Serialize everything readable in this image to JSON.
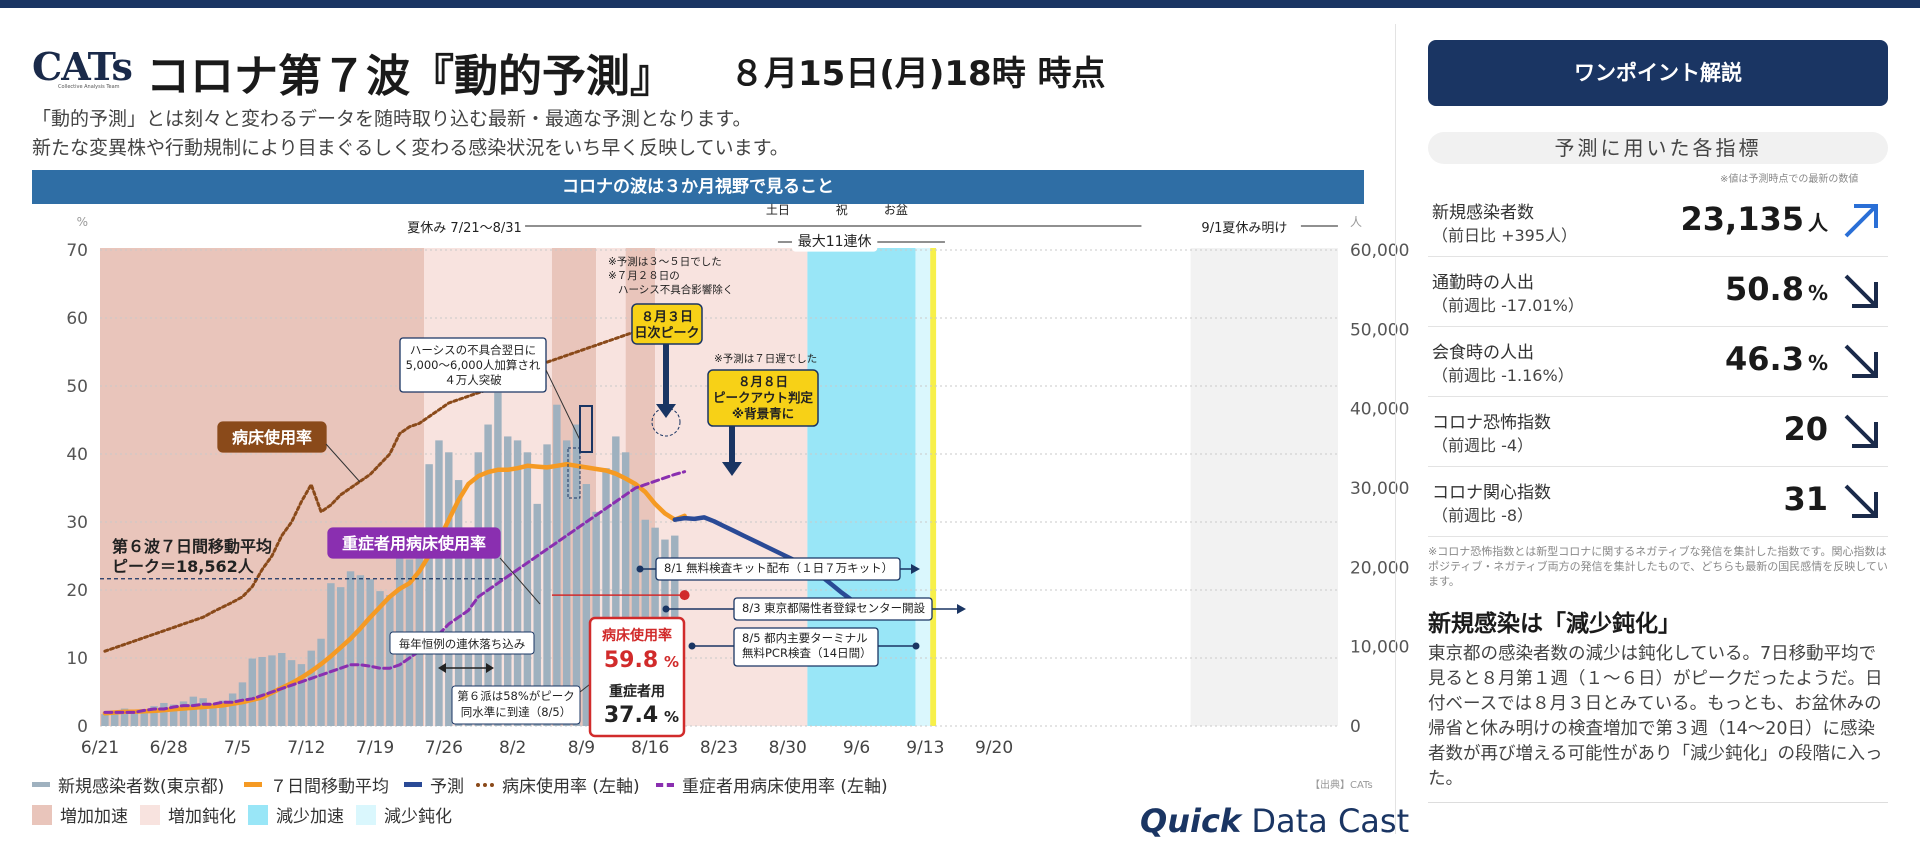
{
  "header": {
    "logo": "CATs",
    "logo_sub": "Collective Analysis Team",
    "title": "コロナ第７波『動的予測』",
    "asof": "８月15日(月)18時 時点",
    "desc1": "「動的予測」とは刻々と変わるデータを随時取り込む最新・最適な予測となります。",
    "desc2": "新たな変異株や行動規制により目まぐるしく変わる感染状況をいち早く反映しています。",
    "banner": "コロナの波は３か月視野で見ること"
  },
  "colors": {
    "bars": "#9fb1bf",
    "ma7": "#f59a23",
    "forecast": "#2a4a96",
    "bed": "#8a4a1a",
    "severe": "#8a2fb0",
    "incFast": "#e9c5bb",
    "incSlow": "#f8e3df",
    "decFast": "#99e6f7",
    "decSlow": "#daf7fd",
    "navy": "#1a3563"
  },
  "chart_data": {
    "type": "bar+line",
    "x_tick_labels": [
      "6/21",
      "6/28",
      "7/5",
      "7/12",
      "7/19",
      "7/26",
      "8/2",
      "8/9",
      "8/16",
      "8/23",
      "8/30",
      "9/6",
      "9/13",
      "9/20"
    ],
    "y_left_unit": "%",
    "y_left_ticks": [
      "0",
      "10",
      "20",
      "30",
      "40",
      "50",
      "60",
      "70"
    ],
    "ylim_left": [
      0,
      70
    ],
    "y_right_unit": "人",
    "y_right_ticks": [
      "0",
      "10,000",
      "20,000",
      "30,000",
      "40,000",
      "50,000",
      "60,000"
    ],
    "ylim_right": [
      0,
      60000
    ],
    "grid": "horizontal dotted",
    "day_start": "2022-06-21",
    "series": [
      {
        "name": "新規感染者数(東京都)",
        "type": "bar",
        "axis": "right",
        "start_day": 0,
        "values": [
          1500,
          1800,
          2200,
          1700,
          1600,
          2500,
          2900,
          2700,
          3100,
          3700,
          3500,
          2800,
          3200,
          4100,
          5500,
          8500,
          8700,
          8900,
          9200,
          8300,
          7800,
          9500,
          11000,
          18000,
          17500,
          19500,
          19000,
          18500,
          17000,
          16500,
          21500,
          21000,
          24000,
          33000,
          36000,
          34500,
          31000,
          25000,
          34500,
          38000,
          42000,
          36500,
          36000,
          34500,
          28000,
          35500,
          40500,
          36000,
          38000,
          30500,
          27000,
          32500,
          36500,
          34500,
          30500,
          26000,
          25000,
          23500,
          24000
        ]
      },
      {
        "name": "７日間移動平均",
        "type": "line",
        "axis": "right",
        "start_day": 0,
        "values": [
          1600,
          1700,
          1800,
          1800,
          1850,
          1900,
          2000,
          2100,
          2200,
          2300,
          2400,
          2500,
          2600,
          2800,
          3000,
          3300,
          3600,
          4200,
          4800,
          5400,
          6100,
          6900,
          7800,
          8800,
          9900,
          11000,
          12300,
          13700,
          15000,
          16300,
          17300,
          18000,
          19500,
          21500,
          23500,
          26000,
          28500,
          30500,
          31500,
          32000,
          32300,
          32300,
          32500,
          32800,
          32700,
          32600,
          32800,
          33000,
          32800,
          32600,
          32400,
          32200,
          31800,
          31200,
          30500,
          29500,
          28000,
          26800,
          26000,
          26500
        ]
      },
      {
        "name": "予測",
        "type": "line",
        "axis": "right",
        "start_day": 58,
        "values": [
          26000,
          26200,
          26100,
          26300,
          25800,
          25200,
          24600,
          24000,
          23400,
          22800,
          22200,
          21600,
          21000,
          20300,
          19600,
          18800,
          17800,
          16800,
          15900,
          15100,
          14400,
          13800
        ]
      },
      {
        "name": "病床使用率 (左軸)",
        "type": "line",
        "axis": "left",
        "start_day": 0,
        "values": [
          11,
          11.5,
          12,
          12.5,
          13,
          13.5,
          14,
          14.5,
          15,
          15.5,
          16,
          16.8,
          17.5,
          18.2,
          19,
          20.5,
          23,
          25,
          28,
          30,
          33,
          35.5,
          31.5,
          32.5,
          34,
          35,
          36,
          37,
          38.5,
          40,
          43,
          44,
          44.5,
          45.5,
          46.5,
          47.5,
          48,
          48.5,
          49,
          49.5,
          50,
          51,
          52,
          52.5,
          53,
          53.5,
          54,
          54.5,
          55,
          55.5,
          56,
          56.5,
          57,
          57.5,
          58,
          58.5,
          59,
          59.2,
          59.5,
          59.8
        ]
      },
      {
        "name": "重症者用病床使用率 (左軸)",
        "type": "line",
        "axis": "left",
        "start_day": 0,
        "values": [
          2,
          2,
          2,
          2,
          2.3,
          2.5,
          2.5,
          2.8,
          3,
          3,
          3.2,
          3.2,
          3.5,
          3.5,
          3.8,
          4,
          4.5,
          5,
          5.5,
          6,
          6.5,
          7,
          7.5,
          8,
          8.5,
          9,
          9,
          8.8,
          8.5,
          8.5,
          9,
          10,
          11,
          12,
          13.5,
          15,
          16,
          17,
          19,
          20,
          21,
          22,
          23,
          24,
          25,
          26,
          27,
          28,
          29,
          30,
          31,
          32,
          33,
          34,
          35,
          35.5,
          36,
          36.5,
          37,
          37.4
        ]
      }
    ],
    "phases": [
      {
        "start": 0,
        "end": 33,
        "type": "incFast"
      },
      {
        "start": 33,
        "end": 46,
        "type": "incSlow"
      },
      {
        "start": 46,
        "end": 50.5,
        "type": "incFast"
      },
      {
        "start": 50.5,
        "end": 53.5,
        "type": "incSlow"
      },
      {
        "start": 53.5,
        "end": 56.5,
        "type": "incFast"
      },
      {
        "start": 56.5,
        "end": 72,
        "type": "incSlow"
      },
      {
        "start": 72,
        "end": 83,
        "type": "decFast"
      },
      {
        "start": 83,
        "end": 84.5,
        "type": "decSlow"
      },
      {
        "start": 111,
        "end": 126,
        "type": "grey"
      }
    ],
    "annotations": {
      "summer": "夏休み 7/21〜8/31",
      "summer_end": "9/1夏休み明け",
      "sat": "土日",
      "holiday": "祝",
      "obon": "お盆",
      "longest": "最大11連休",
      "note_her": [
        "※予測は３〜５日でした",
        "※７月２８日の",
        "ハーシス不具合影響除く"
      ],
      "peak_label": [
        "８月３日",
        "日次ピーク"
      ],
      "note_7days": "※予測は７日遅でした",
      "peakout": [
        "８月８日",
        "ピークアウト判定",
        "※背景青に"
      ],
      "hersys": [
        "ハーシスの不具合翌日に",
        "5,000〜6,000人加算され",
        "４万人突破"
      ],
      "bed_label": "病床使用率",
      "severe_label": "重症者用病床使用率",
      "wave6": [
        "第６波７日間移動平均",
        "ピーク＝18,562人"
      ],
      "holiday_drop": "毎年恒例の連休落ち込み",
      "w6_58": [
        "第６派は58%がピーク",
        "同水準に到達（8/5）"
      ],
      "bed_now_label": "病床使用率",
      "bed_now_value": "59.8",
      "pct": "%",
      "severe_now_label": "重症者用",
      "severe_now_value": "37.4",
      "ev1": "8/1 無料検査キット配布（１日７万キット）",
      "ev2": "8/3 東京都陽性者登録センター開設",
      "ev3": [
        "8/5 都内主要ターミナル",
        "無料PCR検査（14日間）"
      ]
    }
  },
  "legend": {
    "row1": [
      "新規感染者数(東京都)",
      "７日間移動平均",
      "予測",
      "病床使用率 (左軸)",
      "重症者用病床使用率 (左軸)"
    ],
    "row2": [
      "増加加速",
      "増加鈍化",
      "減少加速",
      "減少鈍化"
    ],
    "source": "【出典】CATs",
    "brand_quick": "Quick",
    "brand_rest": " Data Cast"
  },
  "right_panel": {
    "button": "ワンポイント解説",
    "pill": "予測に用いた各指標",
    "note": "※値は予測時点での最新の数値",
    "indicators": [
      {
        "name": "新規感染者数",
        "change": "（前日比 +395人）",
        "value": "23,135",
        "unit": "人",
        "arrow": "up-right"
      },
      {
        "name": "通勤時の人出",
        "change": "（前週比 -17.01%）",
        "value": "50.8",
        "unit": "%",
        "arrow": "down-right"
      },
      {
        "name": "会食時の人出",
        "change": "（前週比 -1.16%）",
        "value": "46.3",
        "unit": "%",
        "arrow": "down-right"
      },
      {
        "name": "コロナ恐怖指数",
        "change": "（前週比 -4）",
        "value": "20",
        "unit": "",
        "arrow": "down-right"
      },
      {
        "name": "コロナ関心指数",
        "change": "（前週比 -8）",
        "value": "31",
        "unit": "",
        "arrow": "down-right"
      }
    ],
    "footnote": "※コロナ恐怖指数とは新型コロナに関するネガティブな発信を集計した指数です。関心指数はポジティブ・ネガティブ両方の発信を集計したもので、どちらも最新の国民感情を反映しています。",
    "heading": "新規感染は「減少鈍化」",
    "body": "東京都の感染者数の減少は鈍化している。7日移動平均で見ると８月第１週（１〜６日）がピークだったようだ。日付ベースでは８月３日とみている。もっとも、お盆休みの帰省と休み明けの検査増加で第３週（14〜20日）に感染者数が再び増える可能性があり「減少鈍化」の段階に入った。"
  }
}
